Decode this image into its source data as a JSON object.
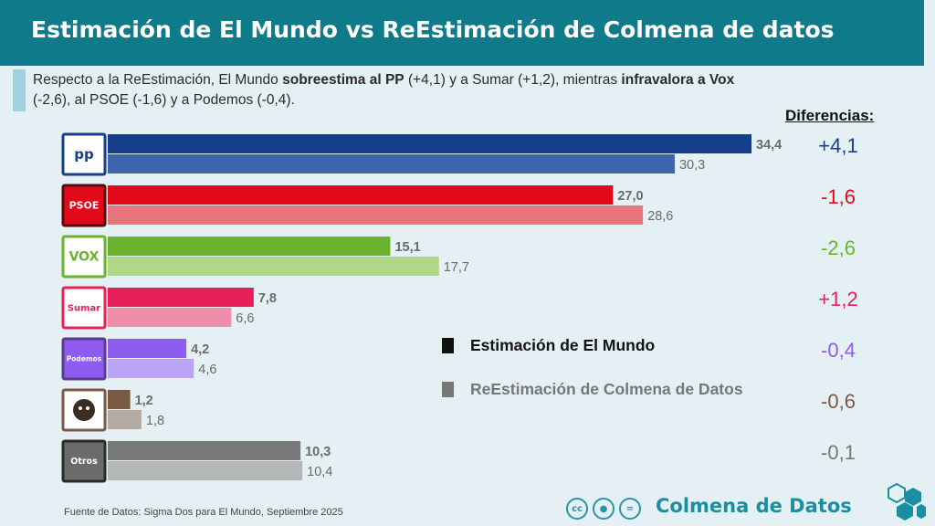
{
  "header": {
    "title": "Estimación de El Mundo vs ReEstimación de Colmena de datos",
    "subtitle_parts": [
      {
        "text": "Respecto a la ReEstimación, El Mundo ",
        "bold": false
      },
      {
        "text": "sobreestima al PP",
        "bold": true
      },
      {
        "text": " (+4,1) y a Sumar (+1,2), mientras ",
        "bold": false
      },
      {
        "text": "infravalora a Vox",
        "bold": true
      },
      {
        "text": " (-2,6), al PSOE (-1,6) y a Podemos (-0,4).",
        "bold": false
      }
    ],
    "diff_header": "Diferencias:"
  },
  "legend": {
    "primary": {
      "label": "Estimación de El Mundo",
      "color": "#111111"
    },
    "secondary": {
      "label": "ReEstimación de Colmena de Datos",
      "color": "#777777"
    }
  },
  "chart_data": {
    "type": "bar",
    "orientation": "horizontal",
    "categories": [
      "PP",
      "PSOE",
      "Vox",
      "Sumar",
      "Podemos",
      "SALF",
      "Otros"
    ],
    "series": [
      {
        "name": "Estimación de El Mundo",
        "values": [
          34.4,
          27.0,
          15.1,
          7.8,
          4.2,
          1.2,
          10.3
        ],
        "labels": [
          "34,4",
          "27,0",
          "15,1",
          "7,8",
          "4,2",
          "1,2",
          "10,3"
        ]
      },
      {
        "name": "ReEstimación de Colmena de Datos",
        "values": [
          30.3,
          28.6,
          17.7,
          6.6,
          4.6,
          1.8,
          10.4
        ],
        "labels": [
          "30,3",
          "28,6",
          "17,7",
          "6,6",
          "4,6",
          "1,8",
          "10,4"
        ]
      }
    ],
    "differences": [
      "+4,1",
      "-1,6",
      "-2,6",
      "+1,2",
      "-0,4",
      "-0,6",
      "-0,1"
    ],
    "colors": {
      "primary": [
        "#163f8c",
        "#e2091a",
        "#6bb32e",
        "#e8205a",
        "#8e5cf0",
        "#7a5a43",
        "#797979"
      ],
      "secondary": [
        "#3d64ad",
        "#e8757e",
        "#b0d68a",
        "#ee8eaa",
        "#bba3f5",
        "#b4aba0",
        "#b3b7b8"
      ],
      "difference": [
        "#163f8c",
        "#e2091a",
        "#6bb32e",
        "#e8205a",
        "#8e5cf0",
        "#7a5a43",
        "#777777"
      ]
    },
    "logos": [
      {
        "text": "pp",
        "icon": "pp-logo-icon"
      },
      {
        "text": "PSOE",
        "icon": "psoe-logo-icon"
      },
      {
        "text": "VOX",
        "icon": "vox-logo-icon"
      },
      {
        "text": "Sumar",
        "icon": "sumar-logo-icon"
      },
      {
        "text": "Podemos",
        "icon": "podemos-logo-icon"
      },
      {
        "text": "",
        "icon": "salf-logo-icon"
      },
      {
        "text": "Otros",
        "icon": "otros-logo-icon"
      }
    ],
    "xlim": [
      0,
      34.4
    ],
    "grid": false,
    "legend_position": "right"
  },
  "footer": {
    "source": "Fuente de Datos: Sigma Dos para El Mundo, Septiembre 2025",
    "brand": "Colmena de Datos",
    "license_icons": [
      "cc-icon",
      "by-icon",
      "equals-icon"
    ]
  }
}
